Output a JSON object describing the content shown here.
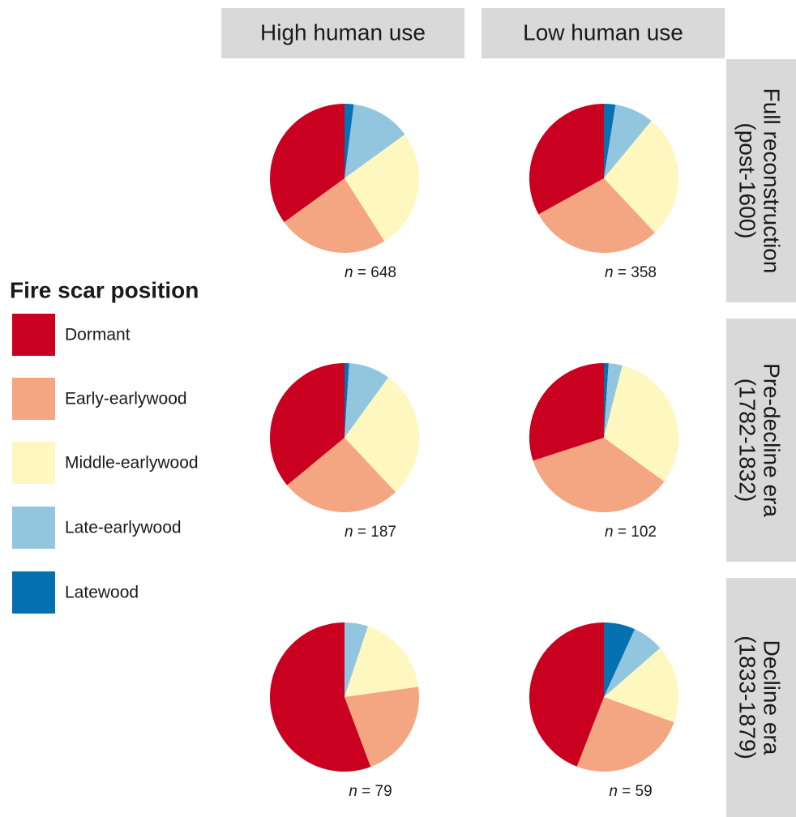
{
  "chart_data": {
    "type": "pie",
    "legend_title": "Fire scar position",
    "categories": [
      "Dormant",
      "Early-earlywood",
      "Middle-earlywood",
      "Late-earlywood",
      "Latewood"
    ],
    "colors": [
      "#ca0020",
      "#f4a582",
      "#fff7c0",
      "#92c5de",
      "#0571b0"
    ],
    "columns": [
      "High human use",
      "Low human use"
    ],
    "rows": [
      {
        "label": [
          "Full reconstruction",
          "(post-1600)"
        ],
        "panels": [
          {
            "values": [
              35,
              24,
              26,
              13,
              2
            ],
            "n_label": "n = 648"
          },
          {
            "values": [
              33,
              29,
              27,
              8.5,
              2.5
            ],
            "n_label": "n = 358"
          }
        ]
      },
      {
        "label": [
          "Pre-decline era",
          "(1782-1832)"
        ],
        "panels": [
          {
            "values": [
              36,
              26,
              28,
              9,
              1
            ],
            "n_label": "n = 187"
          },
          {
            "values": [
              30,
              35,
              31,
              3,
              1
            ],
            "n_label": "n = 102"
          }
        ]
      },
      {
        "label": [
          "Decline era",
          "(1833-1879)"
        ],
        "panels": [
          {
            "values": [
              55.7,
              21.5,
              17.7,
              5.1,
              0
            ],
            "n_label": "n = 79"
          },
          {
            "values": [
              44.1,
              25.4,
              16.9,
              6.8,
              6.8
            ],
            "n_label": "n = 59"
          }
        ]
      }
    ]
  }
}
